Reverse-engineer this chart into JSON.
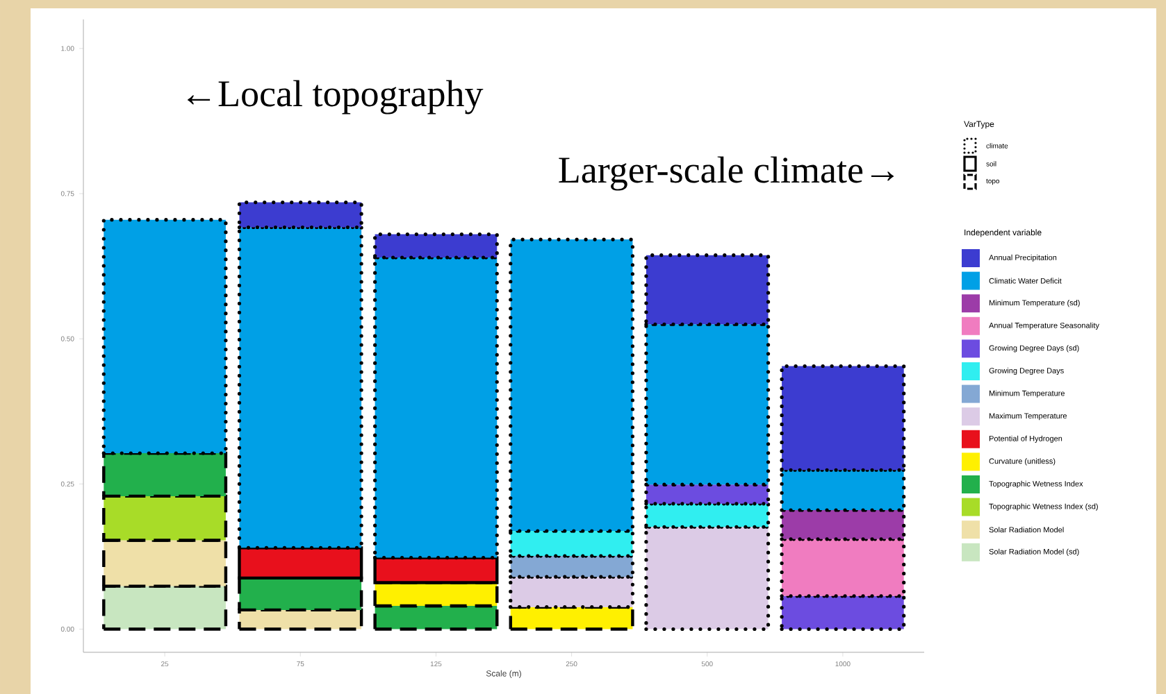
{
  "chart_data": {
    "type": "bar",
    "stacked": true,
    "xlabel": "Scale (m)",
    "legend_title": "Independent variable",
    "legend": "right",
    "categories": [
      "25",
      "75",
      "125",
      "250",
      "500",
      "1000"
    ],
    "ylim": [
      -0.04,
      1.05
    ],
    "yticks": [
      {
        "value": 0,
        "label": "0.00"
      },
      {
        "value": 0.25,
        "label": "0.25"
      },
      {
        "value": 0.5,
        "label": "0.50"
      },
      {
        "value": 0.75,
        "label": "0.75"
      },
      {
        "value": 1,
        "label": "1.00"
      }
    ],
    "annotations": [
      "←Local topography",
      "Larger-scale climate→",
      "VarType",
      "climate",
      "soil",
      "topo"
    ],
    "series": [
      {
        "name": "Solar Radiation Model (sd)",
        "color": "#c8e6c0",
        "line_style": "dashed",
        "values": [
          0.074,
          null,
          null,
          null,
          null,
          null
        ]
      },
      {
        "name": "Solar Radiation Model",
        "color": "#efe0a8",
        "line_style": "dashed",
        "values": [
          0.079,
          0.033,
          null,
          null,
          null,
          null
        ]
      },
      {
        "name": "Topographic Wetness Index (sd)",
        "color": "#a8dc28",
        "line_style": "dashed",
        "values": [
          0.076,
          null,
          null,
          null,
          null,
          null
        ]
      },
      {
        "name": "Topographic Wetness Index",
        "color": "#22b04c",
        "line_style": "dashed",
        "values": [
          0.074,
          0.055,
          0.04,
          null,
          null,
          null
        ]
      },
      {
        "name": "Curvature (unitless)",
        "color": "#fff000",
        "line_style": "dashed",
        "values": [
          null,
          null,
          0.04,
          0.038,
          null,
          null
        ]
      },
      {
        "name": "Potential of Hydrogen",
        "color": "#e8101c",
        "line_style": "solid",
        "values": [
          null,
          0.052,
          0.043,
          null,
          null,
          null
        ]
      },
      {
        "name": "Maximum Temperature",
        "color": "#dccbe6",
        "line_style": "dotted",
        "values": [
          null,
          null,
          null,
          0.052,
          0.176,
          null
        ]
      },
      {
        "name": "Minimum Temperature",
        "color": "#84a8d4",
        "line_style": "dotted",
        "values": [
          null,
          null,
          null,
          0.036,
          null,
          null
        ]
      },
      {
        "name": "Growing Degree Days",
        "color": "#30eef0",
        "line_style": "dotted",
        "values": [
          null,
          null,
          null,
          0.043,
          0.04,
          null
        ]
      },
      {
        "name": "Growing Degree Days (sd)",
        "color": "#6c4ce0",
        "line_style": "dotted",
        "values": [
          null,
          null,
          null,
          null,
          0.033,
          0.057
        ]
      },
      {
        "name": "Annual Temperature Seasonality",
        "color": "#f07cc0",
        "line_style": "dotted",
        "values": [
          null,
          null,
          null,
          null,
          null,
          0.098
        ]
      },
      {
        "name": "Minimum Temperature (sd)",
        "color": "#9c3ca8",
        "line_style": "dotted",
        "values": [
          null,
          null,
          null,
          null,
          null,
          0.05
        ]
      },
      {
        "name": "Climatic Water Deficit",
        "color": "#00a0e6",
        "line_style": "dotted",
        "values": [
          0.402,
          0.552,
          0.517,
          0.502,
          0.276,
          0.069
        ]
      },
      {
        "name": "Annual Precipitation",
        "color": "#3c3cd0",
        "line_style": "dotted",
        "values": [
          null,
          0.043,
          0.04,
          null,
          0.119,
          0.179
        ]
      }
    ]
  }
}
